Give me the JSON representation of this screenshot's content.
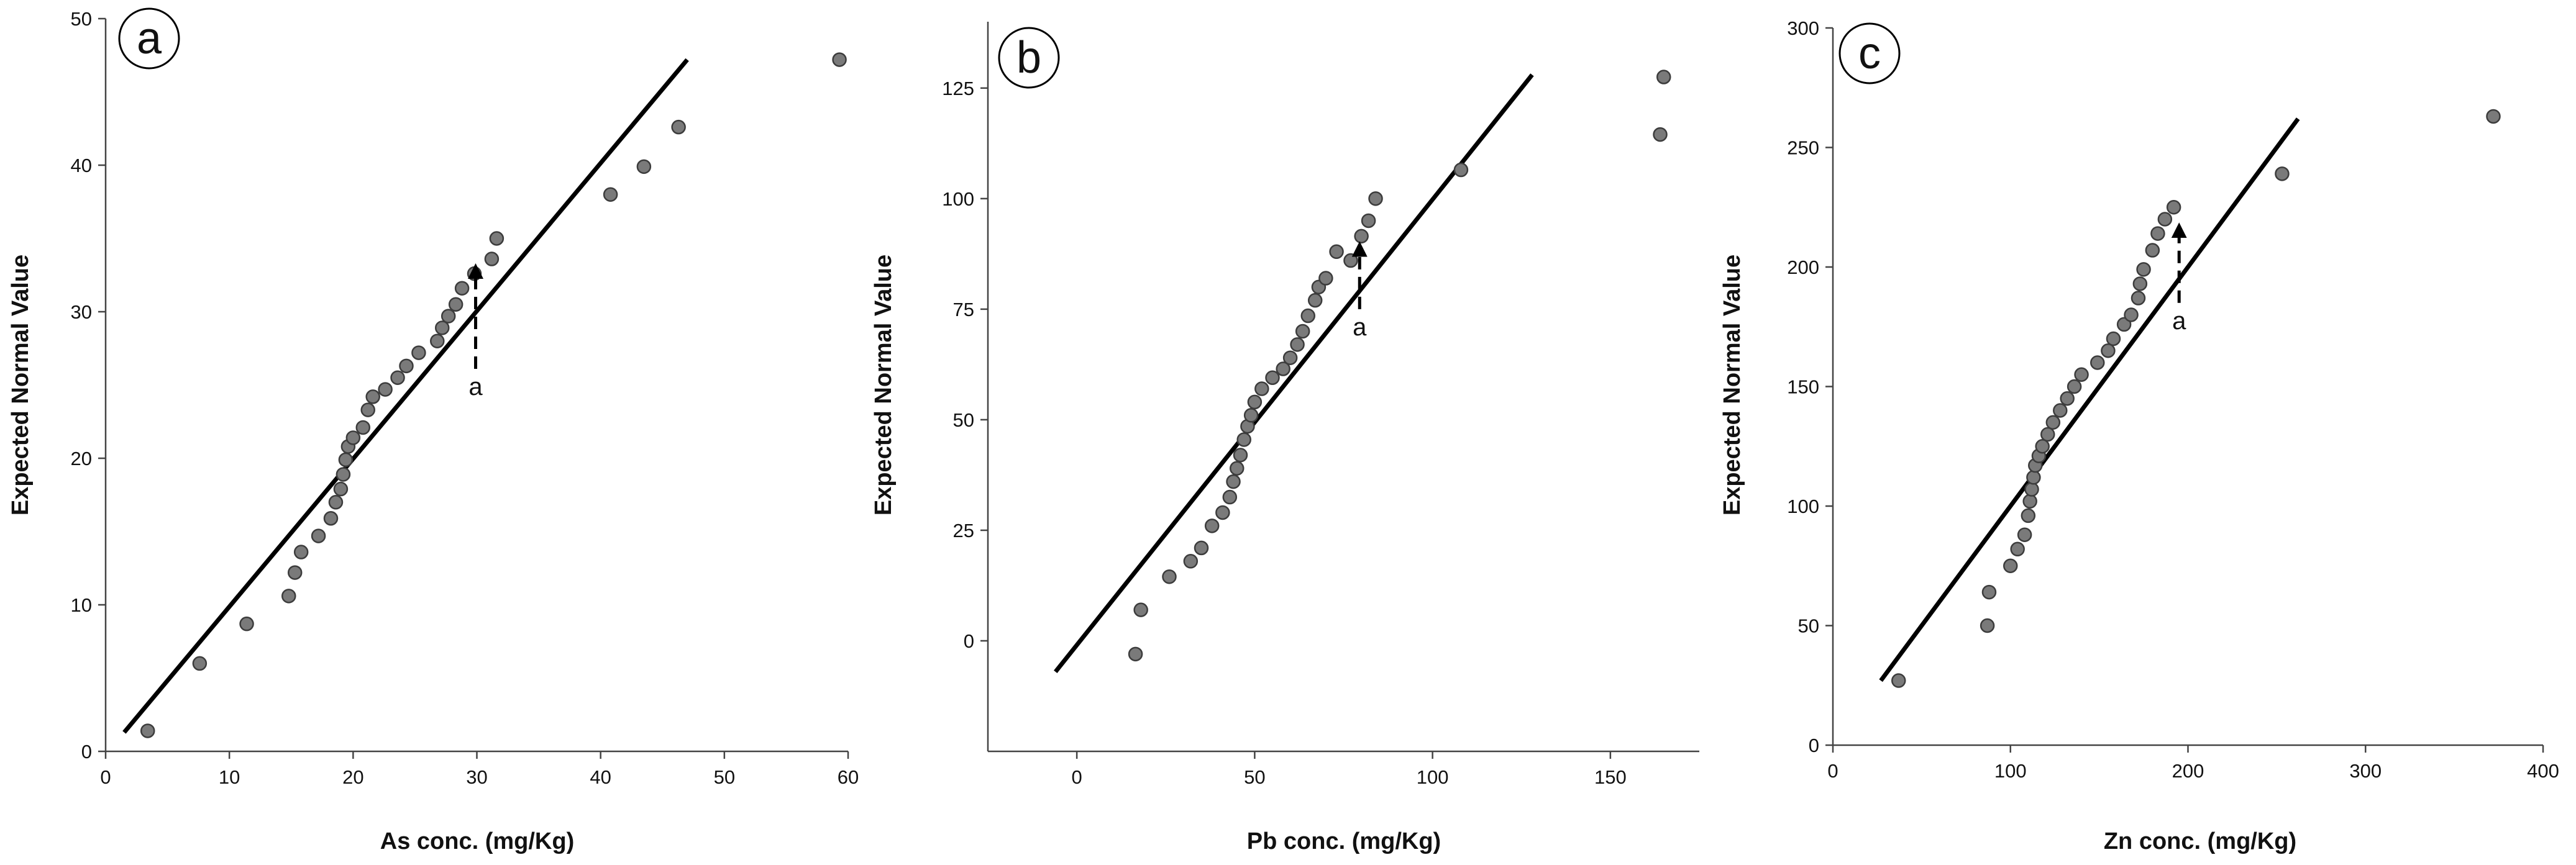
{
  "colors": {
    "point_fill": "#7a7a7a",
    "point_stroke": "#3c3c3c",
    "line": "#000000",
    "axis": "#444444"
  },
  "chart_data": [
    {
      "type": "scatter",
      "panel_label": "a",
      "title": "",
      "xlabel": "As conc. (mg/Kg)",
      "ylabel": "Expected Normal Value",
      "xlim": [
        0,
        60
      ],
      "ylim": [
        0,
        50
      ],
      "xticks": [
        0,
        10,
        20,
        30,
        40,
        50,
        60
      ],
      "yticks": [
        0,
        10,
        20,
        30,
        40,
        50
      ],
      "points": {
        "x": [
          3.4,
          7.6,
          11.4,
          14.8,
          15.3,
          15.8,
          17.2,
          18.2,
          18.6,
          19.0,
          19.2,
          19.4,
          19.6,
          20.0,
          20.8,
          21.2,
          21.6,
          22.6,
          23.6,
          24.3,
          25.3,
          26.8,
          27.2,
          27.7,
          28.3,
          28.8,
          29.8,
          31.2,
          31.6,
          40.8,
          43.5,
          46.3,
          59.3
        ],
        "y": [
          1.4,
          6.0,
          8.7,
          10.6,
          12.2,
          13.6,
          14.7,
          15.9,
          17.0,
          17.9,
          18.9,
          19.9,
          20.8,
          21.4,
          22.1,
          23.3,
          24.2,
          24.7,
          25.5,
          26.3,
          27.2,
          28.0,
          28.9,
          29.7,
          30.5,
          31.6,
          32.6,
          33.6,
          35.0,
          38.0,
          39.9,
          42.6,
          47.2
        ]
      },
      "fit_line": {
        "x": [
          1.5,
          47.0
        ],
        "y": [
          1.3,
          47.2
        ]
      },
      "annotation": {
        "label": "a",
        "x": 29.9,
        "y_from": 26.1,
        "y_to": 33.2
      }
    },
    {
      "type": "scatter",
      "panel_label": "b",
      "title": "",
      "xlabel": "Pb conc. (mg/Kg)",
      "ylabel": "Expected Normal Value",
      "xlim": [
        -25,
        175
      ],
      "ylim": [
        -25,
        140
      ],
      "xticks": [
        0,
        50,
        100,
        150
      ],
      "yticks": [
        0,
        25,
        50,
        75,
        100,
        125
      ],
      "points": {
        "x": [
          16.5,
          18.0,
          26.0,
          32.0,
          35.0,
          38.0,
          41.0,
          43.0,
          44.0,
          45.0,
          46.0,
          47.0,
          48.0,
          49.0,
          50.0,
          52.0,
          55.0,
          58.0,
          60.0,
          62.0,
          63.5,
          65.0,
          67.0,
          68.0,
          70.0,
          73.0,
          77.0,
          80.0,
          82.0,
          84.0,
          108.0,
          164.0,
          165.0
        ],
        "y": [
          -3.0,
          7.0,
          14.5,
          18.0,
          21.0,
          26.0,
          29.0,
          32.5,
          36.0,
          39.0,
          42.0,
          45.5,
          48.5,
          51.0,
          54.0,
          57.0,
          59.5,
          61.5,
          64.0,
          67.0,
          70.0,
          73.5,
          77.0,
          80.0,
          82.0,
          88.0,
          86.0,
          91.5,
          95.0,
          100.0,
          106.5,
          114.5,
          127.5
        ]
      },
      "fit_line": {
        "x": [
          -6.0,
          128.0
        ],
        "y": [
          -7.0,
          128.0
        ]
      },
      "annotation": {
        "label": "a",
        "x": 79.5,
        "y_from": 75.0,
        "y_to": 90.0
      }
    },
    {
      "type": "scatter",
      "panel_label": "c",
      "title": "",
      "xlabel": "Zn conc. (mg/Kg)",
      "ylabel": "Expected Normal Value",
      "xlim": [
        0,
        400
      ],
      "ylim": [
        0,
        300
      ],
      "xticks": [
        0,
        100,
        200,
        300,
        400
      ],
      "yticks": [
        0,
        50,
        100,
        150,
        200,
        250,
        300
      ],
      "points": {
        "x": [
          37,
          87,
          88,
          100,
          104,
          108,
          110,
          111,
          112,
          113,
          114,
          116,
          118,
          121,
          124,
          128,
          132,
          136,
          140,
          149,
          155,
          158,
          164,
          168,
          172,
          173,
          175,
          180,
          183,
          187,
          192,
          253,
          372
        ],
        "y": [
          27,
          50,
          64,
          75,
          82,
          88,
          96,
          102,
          107,
          112,
          117,
          121,
          125,
          130,
          135,
          140,
          145,
          150,
          155,
          160,
          165,
          170,
          176,
          180,
          187,
          193,
          199,
          207,
          214,
          220,
          225,
          239,
          263
        ]
      },
      "fit_line": {
        "x": [
          27,
          262
        ],
        "y": [
          27,
          262
        ]
      },
      "annotation": {
        "label": "a",
        "x": 195,
        "y_from": 185,
        "y_to": 218
      }
    }
  ]
}
